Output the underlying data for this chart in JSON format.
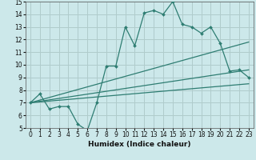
{
  "xlabel": "Humidex (Indice chaleur)",
  "xlim": [
    -0.5,
    23.5
  ],
  "ylim": [
    5,
    15
  ],
  "xticks": [
    0,
    1,
    2,
    3,
    4,
    5,
    6,
    7,
    8,
    9,
    10,
    11,
    12,
    13,
    14,
    15,
    16,
    17,
    18,
    19,
    20,
    21,
    22,
    23
  ],
  "yticks": [
    5,
    6,
    7,
    8,
    9,
    10,
    11,
    12,
    13,
    14,
    15
  ],
  "bg_color": "#cce8ea",
  "grid_color": "#b0cccc",
  "line_color": "#2e7d72",
  "main_line": {
    "x": [
      0,
      1,
      2,
      3,
      4,
      5,
      6,
      7,
      8,
      9,
      10,
      11,
      12,
      13,
      14,
      15,
      16,
      17,
      18,
      19,
      20,
      21,
      22,
      23
    ],
    "y": [
      7.0,
      7.7,
      6.5,
      6.7,
      6.7,
      5.3,
      4.8,
      7.0,
      9.9,
      9.9,
      13.0,
      11.5,
      14.1,
      14.3,
      14.0,
      15.0,
      13.2,
      13.0,
      12.5,
      13.0,
      11.7,
      9.5,
      9.6,
      9.0
    ]
  },
  "straight_lines": [
    {
      "x": [
        0,
        23
      ],
      "y": [
        7.0,
        8.5
      ]
    },
    {
      "x": [
        0,
        23
      ],
      "y": [
        7.0,
        9.6
      ]
    },
    {
      "x": [
        0,
        23
      ],
      "y": [
        7.0,
        11.8
      ]
    }
  ]
}
